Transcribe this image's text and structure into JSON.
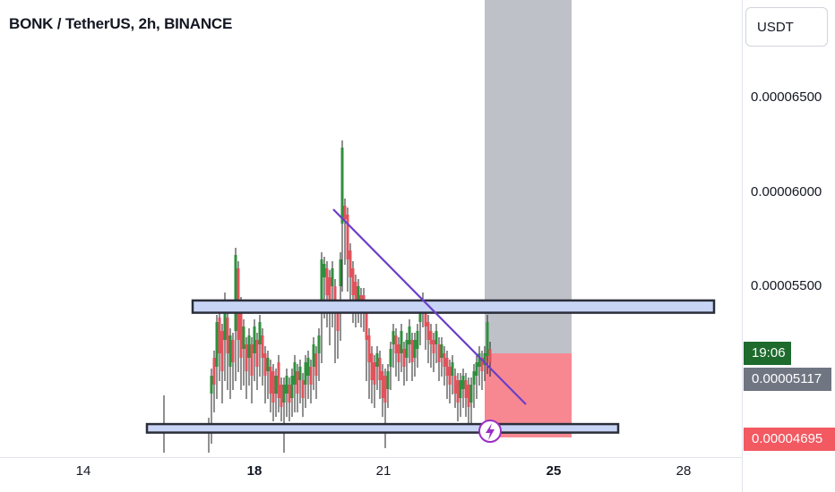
{
  "header": {
    "title": "BONK / TetherUS, 2h, BINANCE"
  },
  "currency": {
    "label": "USDT"
  },
  "colors": {
    "up": "#2f8f3e",
    "down": "#e0535c",
    "trendline": "#6a3fc9",
    "zone_fill": "#c8d4f5",
    "zone_border": "#2a2e39",
    "target_fill": "#bcbec6",
    "stop_fill": "#f7828b",
    "lightning": "#9b2fc4"
  },
  "chart_data": {
    "type": "candlestick",
    "title": "BONK / TetherUS, 2h, BINANCE",
    "y_ticks": [
      "0.00006500",
      "0.00006000",
      "0.00005500"
    ],
    "x_ticks": [
      {
        "label": "14",
        "bold": false
      },
      {
        "label": "18",
        "bold": true
      },
      {
        "label": "21",
        "bold": false
      },
      {
        "label": "25",
        "bold": true
      },
      {
        "label": "28",
        "bold": false
      }
    ],
    "current_price": "0.00005117",
    "countdown": "19:06",
    "stop_price": "0.00004695",
    "resistance_zone": [
      5.355e-05,
      5.42e-05
    ],
    "support_zone": [
      4.72e-05,
      4.765e-05
    ],
    "trendline": [
      [
        5.9e-05,
        4.75e-05
      ]
    ],
    "candles": []
  }
}
